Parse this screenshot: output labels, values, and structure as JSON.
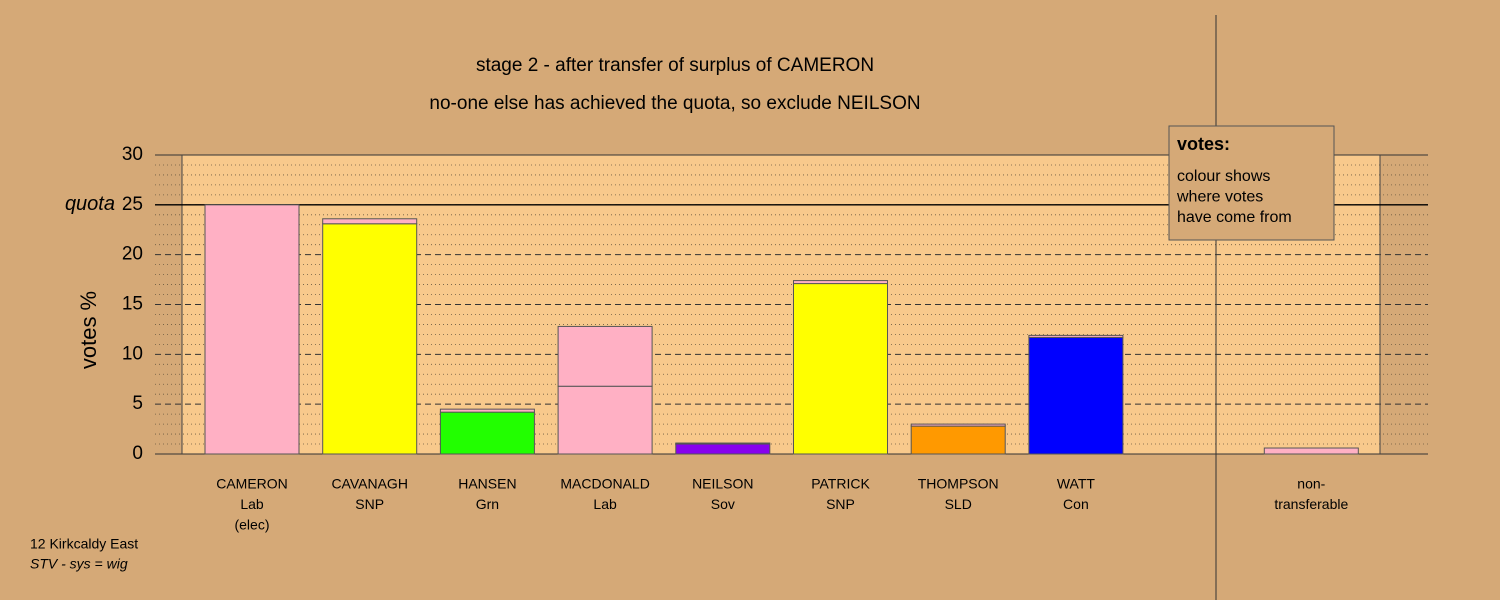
{
  "chart_data": {
    "type": "bar",
    "stacked": true,
    "title": "stage 2 - after transfer of surplus of CAMERON",
    "subtitle": "no-one else has achieved the quota, so exclude NEILSON",
    "y_label": "votes %",
    "quota": 25,
    "quota_label": "quota",
    "categories": [
      [
        "CAMERON",
        "Lab",
        "(elec)"
      ],
      [
        "CAVANAGH",
        "SNP"
      ],
      [
        "HANSEN",
        "Grn"
      ],
      [
        "MACDONALD",
        "Lab"
      ],
      [
        "NEILSON",
        "Sov"
      ],
      [
        "PATRICK",
        "SNP"
      ],
      [
        "THOMPSON",
        "SLD"
      ],
      [
        "WATT",
        "Con"
      ],
      null,
      [
        "non-",
        "transferable"
      ]
    ],
    "series": [
      {
        "colors": [
          "#ffb0c4",
          "#ffff00",
          "#22ff00",
          "#ffb0c4",
          "#8800ee",
          "#ffff00",
          "#ff9900",
          "#0000ff",
          null,
          "#ffb0c4"
        ],
        "values": [
          25,
          23.1,
          4.2,
          6.8,
          1.0,
          17.1,
          2.8,
          11.7,
          null,
          0
        ]
      },
      {
        "color": "#ffb0c4",
        "values": [
          0,
          0.5,
          0.3,
          6.0,
          0.1,
          0.3,
          0.2,
          0.2,
          null,
          0.6
        ]
      }
    ],
    "ylim": [
      0,
      30
    ],
    "yticks": [
      0,
      5,
      10,
      15,
      20,
      25,
      30
    ],
    "minor_yticks": [
      1,
      2,
      3,
      4,
      6,
      7,
      8,
      9,
      11,
      12,
      13,
      14,
      16,
      17,
      18,
      19,
      21,
      22,
      23,
      24,
      26,
      27,
      28,
      29
    ],
    "grid": true,
    "note": {
      "heading": "votes:",
      "lines": [
        "colour shows",
        "where votes",
        "have come from"
      ]
    },
    "footer": [
      "12 Kirkcaldy East",
      "STV - sys = wig"
    ]
  }
}
